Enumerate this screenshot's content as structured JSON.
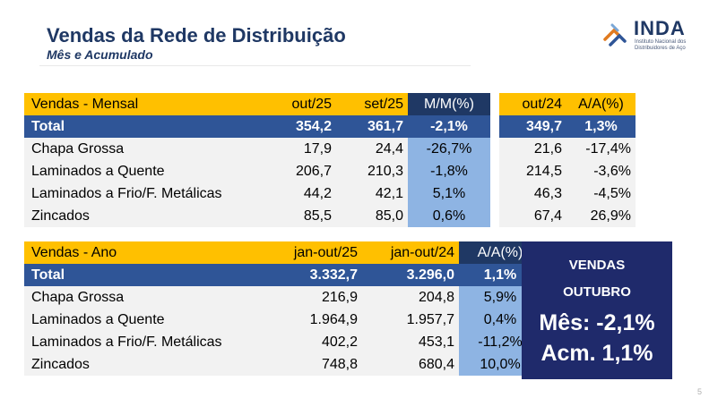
{
  "header": {
    "title": "Vendas da Rede de Distribuição",
    "subtitle": "Mês e Acumulado"
  },
  "logo": {
    "name": "INDA",
    "sub_line1": "Instituto Nacional dos",
    "sub_line2": "Distribuidores de Aço"
  },
  "monthly": {
    "headers": [
      "Vendas - Mensal",
      "out/25",
      "set/25",
      "M/M(%)",
      "out/24",
      "A/A(%)"
    ],
    "total": [
      "Total",
      "354,2",
      "361,7",
      "-2,1%",
      "349,7",
      "1,3%"
    ],
    "rows": [
      [
        "Chapa Grossa",
        "17,9",
        "24,4",
        "-26,7%",
        "21,6",
        "-17,4%"
      ],
      [
        "Laminados a Quente",
        "206,7",
        "210,3",
        "-1,8%",
        "214,5",
        "-3,6%"
      ],
      [
        "Laminados a Frio/F. Metálicas",
        "44,2",
        "42,1",
        "5,1%",
        "46,3",
        "-4,5%"
      ],
      [
        "Zincados",
        "85,5",
        "85,0",
        "0,6%",
        "67,4",
        "26,9%"
      ]
    ]
  },
  "annual": {
    "headers": [
      "Vendas - Ano",
      "jan-out/25",
      "jan-out/24",
      "A/A(%)"
    ],
    "total": [
      "Total",
      "3.332,7",
      "3.296,0",
      "1,1%"
    ],
    "rows": [
      [
        "Chapa Grossa",
        "216,9",
        "204,8",
        "5,9%"
      ],
      [
        "Laminados a Quente",
        "1.964,9",
        "1.957,7",
        "0,4%"
      ],
      [
        "Laminados a Frio/F. Metálicas",
        "402,2",
        "453,1",
        "-11,2%"
      ],
      [
        "Zincados",
        "748,8",
        "680,4",
        "10,0%"
      ]
    ]
  },
  "summary": {
    "line1": "VENDAS",
    "line2": "OUTUBRO",
    "line3": "Mês: -2,1%",
    "line4": "Acm. 1,1%"
  },
  "page_number": "5",
  "colors": {
    "title": "#1f3864",
    "header_yellow": "#ffc000",
    "total_blue": "#2f5597",
    "highlight_blue": "#8eb4e3",
    "dark_navy": "#1f3864",
    "summary_box": "#1f2a6b",
    "row_gray": "#f2f2f2"
  }
}
